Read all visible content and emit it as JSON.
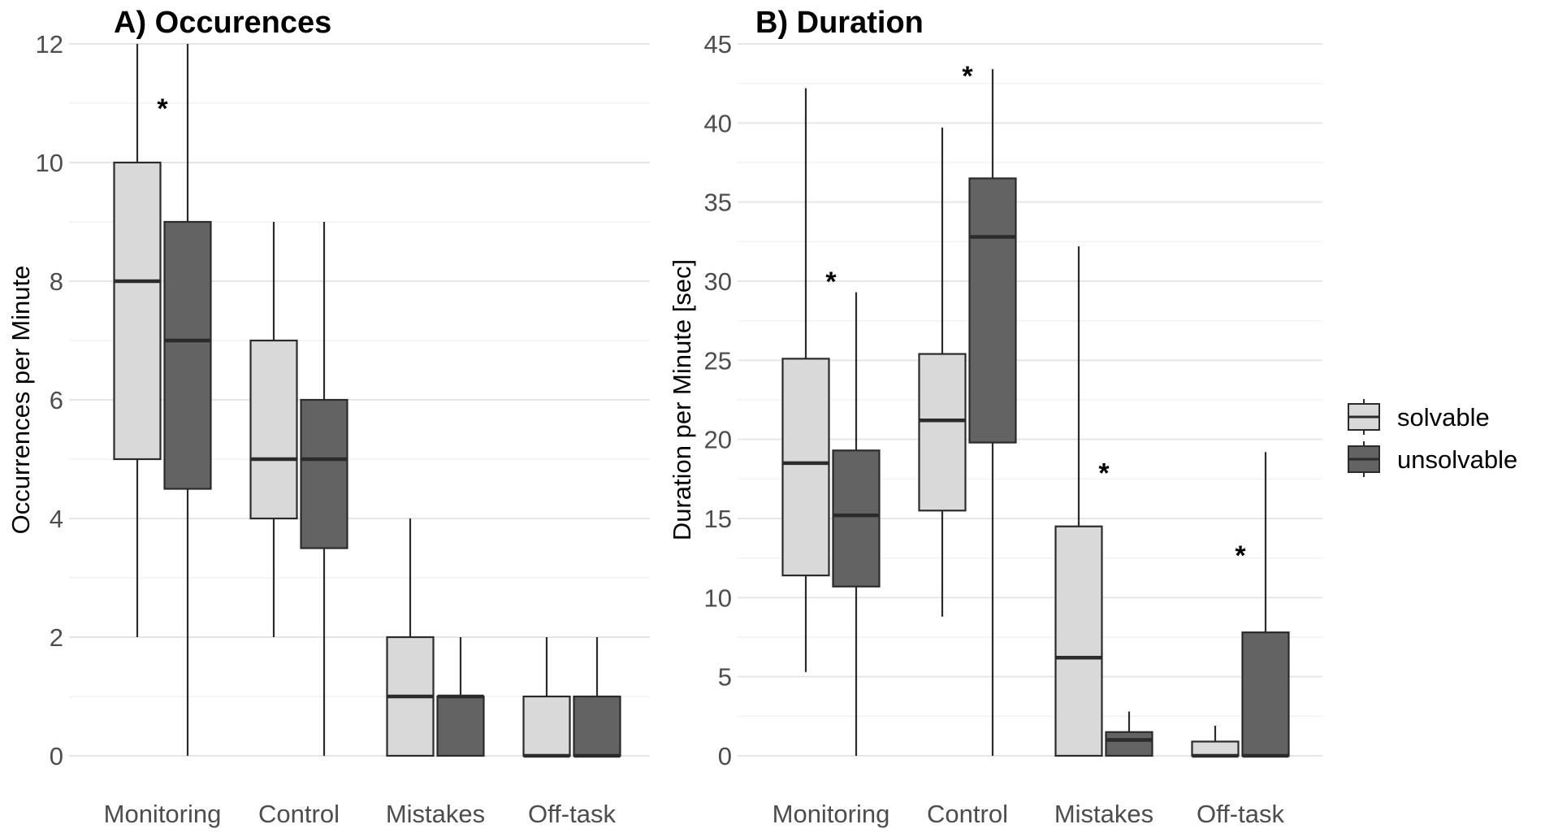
{
  "chart_data": [
    {
      "type": "boxplot",
      "title": "A) Occurences",
      "xlabel": "",
      "ylabel": "Occurrences per Minute",
      "ylim": [
        0,
        12
      ],
      "yticks": [
        0,
        2,
        4,
        6,
        8,
        10,
        12
      ],
      "grid": true,
      "categories": [
        "Monitoring",
        "Control",
        "Mistakes",
        "Off-task"
      ],
      "series": [
        {
          "name": "solvable",
          "boxes": [
            {
              "min": 2,
              "q1": 5,
              "median": 8,
              "q3": 10,
              "max": 12
            },
            {
              "min": 2,
              "q1": 4,
              "median": 5,
              "q3": 7,
              "max": 9
            },
            {
              "min": 0,
              "q1": 0,
              "median": 1,
              "q3": 2,
              "max": 4
            },
            {
              "min": 0,
              "q1": 0,
              "median": 0,
              "q3": 1,
              "max": 2
            }
          ]
        },
        {
          "name": "unsolvable",
          "boxes": [
            {
              "min": 0,
              "q1": 4.5,
              "median": 7,
              "q3": 9,
              "max": 12
            },
            {
              "min": 0,
              "q1": 3.5,
              "median": 5,
              "q3": 6,
              "max": 9
            },
            {
              "min": 0,
              "q1": 0,
              "median": 1,
              "q3": 1,
              "max": 2
            },
            {
              "min": 0,
              "q1": 0,
              "median": 0,
              "q3": 1,
              "max": 2
            }
          ]
        }
      ],
      "annotations": [
        {
          "text": "*",
          "category": "Monitoring",
          "y": 11
        }
      ]
    },
    {
      "type": "boxplot",
      "title": "B) Duration",
      "xlabel": "",
      "ylabel": "Duration per Minute [sec]",
      "ylim": [
        0,
        45
      ],
      "yticks": [
        0,
        5,
        10,
        15,
        20,
        25,
        30,
        35,
        40,
        45
      ],
      "grid": true,
      "categories": [
        "Monitoring",
        "Control",
        "Mistakes",
        "Off-task"
      ],
      "series": [
        {
          "name": "solvable",
          "boxes": [
            {
              "min": 5.3,
              "q1": 11.4,
              "median": 18.5,
              "q3": 25.1,
              "max": 42.2
            },
            {
              "min": 8.8,
              "q1": 15.5,
              "median": 21.2,
              "q3": 25.4,
              "max": 39.7
            },
            {
              "min": 0,
              "q1": 0,
              "median": 6.2,
              "q3": 14.5,
              "max": 32.2
            },
            {
              "min": 0,
              "q1": 0,
              "median": 0,
              "q3": 0.9,
              "max": 1.9
            }
          ]
        },
        {
          "name": "unsolvable",
          "boxes": [
            {
              "min": 0,
              "q1": 10.7,
              "median": 15.2,
              "q3": 19.3,
              "max": 29.3
            },
            {
              "min": 0,
              "q1": 19.8,
              "median": 32.8,
              "q3": 36.5,
              "max": 43.4
            },
            {
              "min": 0,
              "q1": 0,
              "median": 1.0,
              "q3": 1.5,
              "max": 2.8
            },
            {
              "min": 0,
              "q1": 0,
              "median": 0,
              "q3": 7.8,
              "max": 19.2
            }
          ]
        }
      ],
      "annotations": [
        {
          "text": "*",
          "category": "Monitoring",
          "y": 30.3
        },
        {
          "text": "*",
          "category": "Control",
          "y": 43.3
        },
        {
          "text": "*",
          "category": "Mistakes",
          "y": 18.2
        },
        {
          "text": "*",
          "category": "Off-task",
          "y": 13.0
        }
      ]
    }
  ],
  "legend": {
    "placement": "right",
    "items": [
      {
        "label": "solvable",
        "color": "#d9d9d9"
      },
      {
        "label": "unsolvable",
        "color": "#636363"
      }
    ]
  },
  "colors": {
    "solvable": "#d9d9d9",
    "unsolvable": "#636363",
    "outline": "#2b2b2b"
  }
}
